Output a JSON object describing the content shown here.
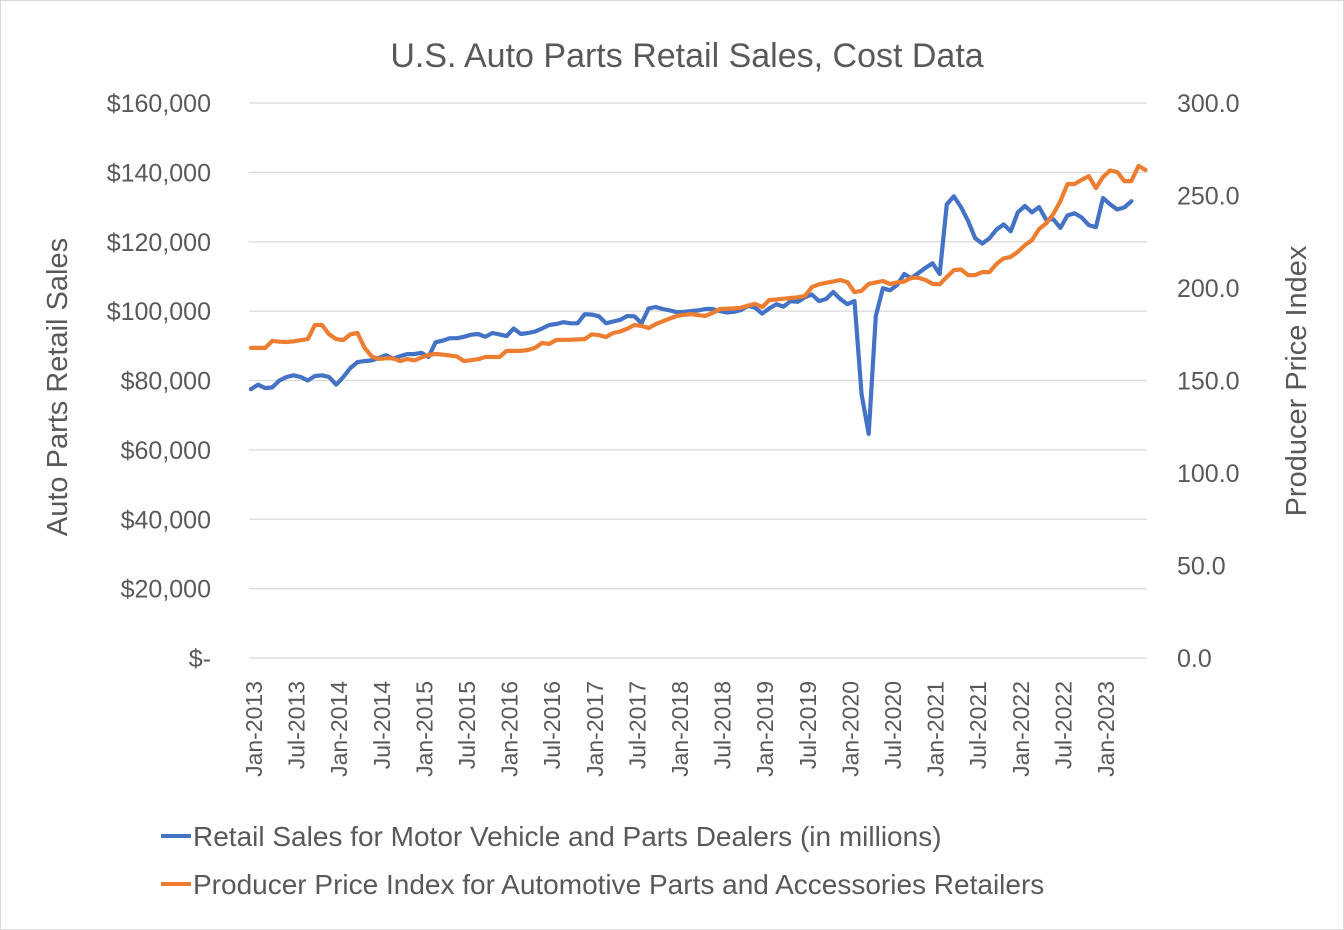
{
  "chart_data": {
    "type": "line",
    "title": "U.S. Auto Parts Retail Sales, Cost Data",
    "ylabel": "Auto Parts Retail Sales",
    "y2label": "Producer Price Index",
    "ylim": [
      0,
      160000
    ],
    "y2lim": [
      0,
      300
    ],
    "yticks": [
      "$-",
      "$20,000",
      "$40,000",
      "$60,000",
      "$80,000",
      "$100,000",
      "$120,000",
      "$140,000",
      "$160,000"
    ],
    "y2ticks": [
      "0.0",
      "50.0",
      "100.0",
      "150.0",
      "200.0",
      "250.0",
      "300.0"
    ],
    "xticks": [
      "Jan-2013",
      "Jul-2013",
      "Jan-2014",
      "Jul-2014",
      "Jan-2015",
      "Jul-2015",
      "Jan-2016",
      "Jul-2016",
      "Jan-2017",
      "Jul-2017",
      "Jan-2018",
      "Jul-2018",
      "Jan-2019",
      "Jul-2019",
      "Jan-2020",
      "Jul-2020",
      "Jan-2021",
      "Jul-2021",
      "Jan-2022",
      "Jul-2022",
      "Jan-2023"
    ],
    "x_start": "Jan-2013",
    "x_interval": "monthly",
    "grid": true,
    "legend_position": "bottom",
    "series": [
      {
        "name": "Retail Sales for Motor Vehicle and Parts Dealers (in millions)",
        "axis": "left",
        "color": "#4472C4",
        "values": [
          77500,
          78800,
          77800,
          78000,
          80000,
          81000,
          81500,
          81000,
          80000,
          81300,
          81500,
          81000,
          78800,
          81000,
          83600,
          85300,
          85600,
          85800,
          86500,
          87300,
          86300,
          87000,
          87600,
          87600,
          88000,
          86800,
          91000,
          91500,
          92200,
          92200,
          92600,
          93200,
          93400,
          92600,
          93700,
          93300,
          92800,
          95000,
          93400,
          93700,
          94100,
          95000,
          96000,
          96300,
          96800,
          96500,
          96500,
          99100,
          99000,
          98500,
          96500,
          97000,
          97500,
          98600,
          98500,
          96500,
          100800,
          101200,
          100600,
          100200,
          99700,
          99800,
          100000,
          100200,
          100600,
          100600,
          100000,
          99600,
          99800,
          100300,
          101500,
          101000,
          99300,
          100800,
          102000,
          101300,
          102900,
          102700,
          104000,
          104800,
          102900,
          103500,
          105500,
          103500,
          102000,
          102900,
          76000,
          64600,
          98600,
          106600,
          106000,
          107500,
          110700,
          109500,
          111000,
          112500,
          113800,
          110700,
          130800,
          133100,
          130000,
          126000,
          121000,
          119500,
          121000,
          123500,
          125000,
          123000,
          128500,
          130300,
          128500,
          130000,
          126300,
          126500,
          124000,
          127600,
          128200,
          127000,
          124800,
          124200,
          132600,
          130800,
          129300,
          129900,
          131700,
          null,
          null
        ]
      },
      {
        "name": "Producer Price Index for Automotive Parts and Accessories Retailers",
        "axis": "right",
        "color": "#ED7D31",
        "values": [
          167.6,
          167.6,
          167.6,
          171.4,
          171.0,
          170.8,
          171.2,
          171.8,
          172.4,
          180.0,
          180.0,
          175.0,
          172.4,
          171.9,
          175.0,
          175.7,
          167.6,
          163.0,
          161.6,
          162.0,
          162.0,
          160.5,
          161.6,
          160.8,
          162.5,
          163.8,
          164.3,
          164.0,
          163.5,
          163.0,
          160.5,
          161.0,
          161.5,
          162.7,
          162.7,
          162.7,
          166.0,
          166.0,
          166.0,
          166.5,
          167.6,
          170.3,
          169.8,
          171.9,
          172.0,
          172.0,
          172.2,
          172.4,
          175.0,
          174.5,
          173.5,
          175.7,
          176.5,
          178.0,
          180.0,
          179.5,
          178.4,
          180.5,
          182.0,
          183.5,
          184.9,
          185.5,
          185.9,
          185.3,
          184.9,
          186.5,
          188.6,
          188.8,
          189.0,
          189.3,
          190.5,
          191.4,
          189.7,
          193.5,
          193.8,
          194.2,
          194.6,
          195.0,
          195.7,
          200.5,
          202.0,
          202.8,
          203.5,
          204.3,
          203.2,
          197.8,
          198.5,
          202.2,
          203.0,
          203.8,
          202.2,
          203.0,
          203.5,
          205.5,
          205.5,
          204.3,
          202.2,
          202.0,
          206.0,
          209.7,
          210.0,
          207.0,
          207.0,
          208.6,
          208.6,
          213.0,
          216.0,
          216.8,
          219.5,
          223.2,
          225.9,
          231.9,
          235.0,
          240.0,
          247.0,
          256.2,
          256.2,
          258.5,
          260.5,
          254.0,
          260.0,
          263.5,
          262.7,
          257.8,
          257.8,
          266.0,
          263.8
        ]
      }
    ]
  }
}
